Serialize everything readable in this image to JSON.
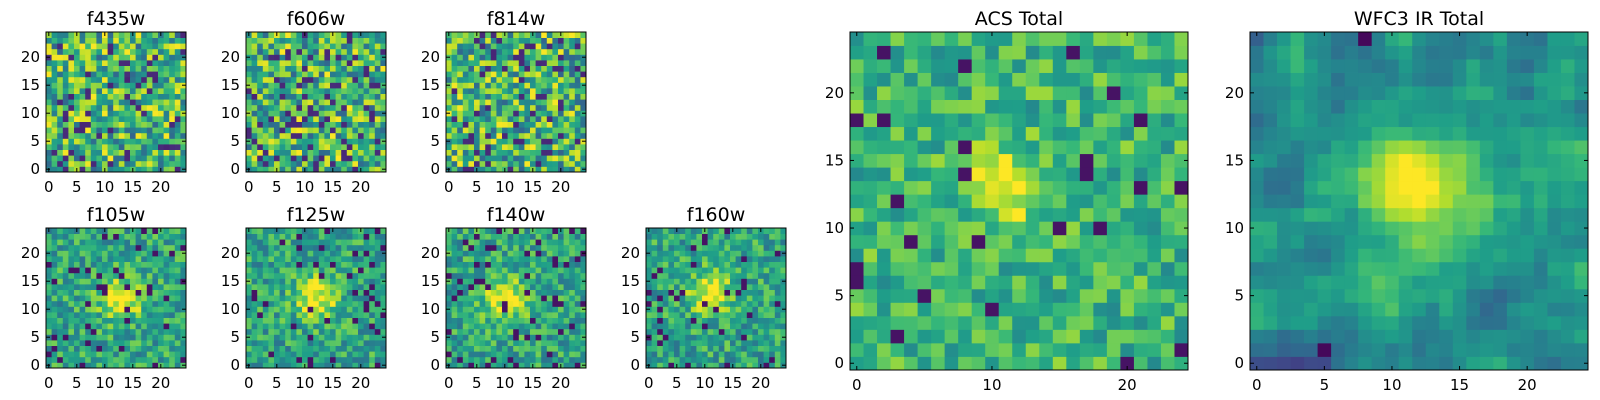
{
  "chart_data": [
    {
      "type": "heatmap",
      "title": "f435w",
      "colormap": "viridis",
      "grid": false,
      "xlim": [
        -0.5,
        24.5
      ],
      "ylim": [
        -0.5,
        24.5
      ],
      "xticks": [
        0,
        5,
        10,
        15,
        20
      ],
      "yticks": [
        0,
        5,
        10,
        15,
        20
      ],
      "xtick_labels": [
        "0",
        "5",
        "10",
        "15",
        "20"
      ],
      "ytick_labels": [
        "0",
        "5",
        "10",
        "15",
        "20"
      ],
      "shape": [
        25,
        25
      ],
      "value_range": [
        0,
        1
      ],
      "style": "noise",
      "seed": 11
    },
    {
      "type": "heatmap",
      "title": "f606w",
      "colormap": "viridis",
      "grid": false,
      "xlim": [
        -0.5,
        24.5
      ],
      "ylim": [
        -0.5,
        24.5
      ],
      "xticks": [
        0,
        5,
        10,
        15,
        20
      ],
      "yticks": [
        0,
        5,
        10,
        15,
        20
      ],
      "xtick_labels": [
        "0",
        "5",
        "10",
        "15",
        "20"
      ],
      "ytick_labels": [
        "0",
        "5",
        "10",
        "15",
        "20"
      ],
      "shape": [
        25,
        25
      ],
      "value_range": [
        0,
        1
      ],
      "style": "noise",
      "seed": 23
    },
    {
      "type": "heatmap",
      "title": "f814w",
      "colormap": "viridis",
      "grid": false,
      "xlim": [
        -0.5,
        24.5
      ],
      "ylim": [
        -0.5,
        24.5
      ],
      "xticks": [
        0,
        5,
        10,
        15,
        20
      ],
      "yticks": [
        0,
        5,
        10,
        15,
        20
      ],
      "xtick_labels": [
        "0",
        "5",
        "10",
        "15",
        "20"
      ],
      "ytick_labels": [
        "0",
        "5",
        "10",
        "15",
        "20"
      ],
      "shape": [
        25,
        25
      ],
      "value_range": [
        0,
        1
      ],
      "style": "noise",
      "seed": 37
    },
    {
      "type": "heatmap",
      "title": "f105w",
      "colormap": "viridis",
      "grid": false,
      "xlim": [
        -0.5,
        24.5
      ],
      "ylim": [
        -0.5,
        24.5
      ],
      "xticks": [
        0,
        5,
        10,
        15,
        20
      ],
      "yticks": [
        0,
        5,
        10,
        15,
        20
      ],
      "xtick_labels": [
        "0",
        "5",
        "10",
        "15",
        "20"
      ],
      "ytick_labels": [
        "0",
        "5",
        "10",
        "15",
        "20"
      ],
      "shape": [
        25,
        25
      ],
      "value_range": [
        0,
        1
      ],
      "style": "source",
      "source_center": [
        13,
        12
      ],
      "seed": 41
    },
    {
      "type": "heatmap",
      "title": "f125w",
      "colormap": "viridis",
      "grid": false,
      "xlim": [
        -0.5,
        24.5
      ],
      "ylim": [
        -0.5,
        24.5
      ],
      "xticks": [
        0,
        5,
        10,
        15,
        20
      ],
      "yticks": [
        0,
        5,
        10,
        15,
        20
      ],
      "xtick_labels": [
        "0",
        "5",
        "10",
        "15",
        "20"
      ],
      "ytick_labels": [
        "0",
        "5",
        "10",
        "15",
        "20"
      ],
      "shape": [
        25,
        25
      ],
      "value_range": [
        0,
        1
      ],
      "style": "source",
      "source_center": [
        12,
        12
      ],
      "seed": 53
    },
    {
      "type": "heatmap",
      "title": "f140w",
      "colormap": "viridis",
      "grid": false,
      "xlim": [
        -0.5,
        24.5
      ],
      "ylim": [
        -0.5,
        24.5
      ],
      "xticks": [
        0,
        5,
        10,
        15,
        20
      ],
      "yticks": [
        0,
        5,
        10,
        15,
        20
      ],
      "xtick_labels": [
        "0",
        "5",
        "10",
        "15",
        "20"
      ],
      "ytick_labels": [
        "0",
        "5",
        "10",
        "15",
        "20"
      ],
      "shape": [
        25,
        25
      ],
      "value_range": [
        0,
        1
      ],
      "style": "source",
      "source_center": [
        10,
        12
      ],
      "seed": 67
    },
    {
      "type": "heatmap",
      "title": "f160w",
      "colormap": "viridis",
      "grid": false,
      "xlim": [
        -0.5,
        24.5
      ],
      "ylim": [
        -0.5,
        24.5
      ],
      "xticks": [
        0,
        5,
        10,
        15,
        20
      ],
      "yticks": [
        0,
        5,
        10,
        15,
        20
      ],
      "xtick_labels": [
        "0",
        "5",
        "10",
        "15",
        "20"
      ],
      "ytick_labels": [
        "0",
        "5",
        "10",
        "15",
        "20"
      ],
      "shape": [
        25,
        25
      ],
      "value_range": [
        0,
        1
      ],
      "style": "source",
      "source_center": [
        11,
        13
      ],
      "seed": 79
    },
    {
      "type": "heatmap",
      "title": "ACS Total",
      "colormap": "viridis",
      "grid": false,
      "xlim": [
        -0.5,
        24.5
      ],
      "ylim": [
        -0.5,
        24.5
      ],
      "xticks": [
        0,
        10,
        20
      ],
      "yticks": [
        0,
        5,
        10,
        15,
        20
      ],
      "xtick_labels": [
        "0",
        "10",
        "20"
      ],
      "ytick_labels": [
        "0",
        "5",
        "10",
        "15",
        "20"
      ],
      "shape": [
        25,
        25
      ],
      "value_range": [
        0,
        1
      ],
      "style": "source_weak",
      "source_center": [
        11,
        13
      ],
      "seed": 89
    },
    {
      "type": "heatmap",
      "title": "WFC3 IR Total",
      "colormap": "viridis",
      "grid": false,
      "xlim": [
        -0.5,
        24.5
      ],
      "ylim": [
        -0.5,
        24.5
      ],
      "xticks": [
        0,
        5,
        10,
        15,
        20
      ],
      "yticks": [
        0,
        5,
        10,
        15,
        20
      ],
      "xtick_labels": [
        "0",
        "5",
        "10",
        "15",
        "20"
      ],
      "ytick_labels": [
        "0",
        "5",
        "10",
        "15",
        "20"
      ],
      "shape": [
        25,
        25
      ],
      "value_range": [
        0,
        1
      ],
      "style": "smooth_source",
      "source_center": [
        12,
        13
      ],
      "seed": 97
    }
  ]
}
